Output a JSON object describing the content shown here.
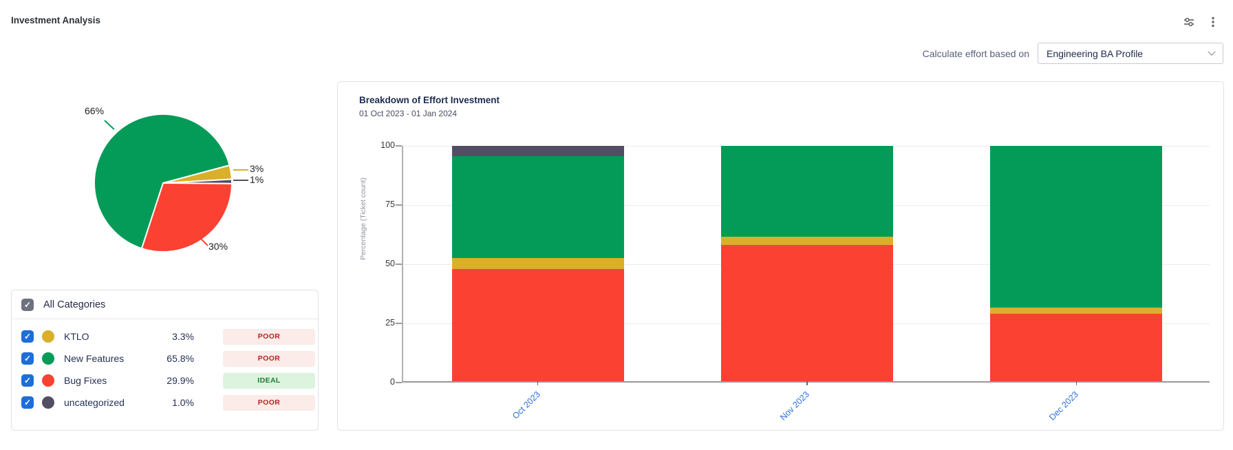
{
  "header": {
    "title": "Investment Analysis",
    "icons": [
      "sliders-icon",
      "kebab-menu-icon"
    ]
  },
  "controls": {
    "label": "Calculate effort based on",
    "dropdown_value": "Engineering BA Profile"
  },
  "categories_panel": {
    "all_label": "All Categories",
    "rows": [
      {
        "name": "KTLO",
        "pct": "3.3%",
        "status": "POOR",
        "status_type": "poor",
        "color": "#d9af2b",
        "checked": true
      },
      {
        "name": "New Features",
        "pct": "65.8%",
        "status": "POOR",
        "status_type": "poor",
        "color": "#049b58",
        "checked": true
      },
      {
        "name": "Bug Fixes",
        "pct": "29.9%",
        "status": "IDEAL",
        "status_type": "ideal",
        "color": "#fb4132",
        "checked": true
      },
      {
        "name": "uncategorized",
        "pct": "1.0%",
        "status": "POOR",
        "status_type": "poor",
        "color": "#534e64",
        "checked": true
      }
    ],
    "status_colors": {
      "poor_bg": "#fbebe9",
      "poor_text": "#b3261e",
      "ideal_bg": "#dcf3de",
      "ideal_text": "#1a7d33"
    }
  },
  "chart_data": [
    {
      "type": "pie",
      "start_angle_deg": 75,
      "slices": [
        {
          "name": "KTLO",
          "value": 3.3,
          "label": "3%",
          "color": "#d9af2b"
        },
        {
          "name": "uncategorized",
          "value": 1.0,
          "label": "1%",
          "color": "#534e64"
        },
        {
          "name": "Bug Fixes",
          "value": 29.9,
          "label": "30%",
          "color": "#fb4132"
        },
        {
          "name": "New Features",
          "value": 65.8,
          "label": "66%",
          "color": "#049b58"
        }
      ],
      "legend_position": "none"
    },
    {
      "type": "bar",
      "stacked": true,
      "title": "Breakdown of Effort Investment",
      "subtitle": "01 Oct 2023 - 01 Jan 2024",
      "categories": [
        "Oct 2023",
        "Nov 2023",
        "Dec 2023"
      ],
      "series": [
        {
          "name": "Bug Fixes",
          "color": "#fb4132",
          "values": [
            47.8,
            58.0,
            28.6
          ]
        },
        {
          "name": "KTLO",
          "color": "#d9af2b",
          "values": [
            4.4,
            3.4,
            2.7
          ]
        },
        {
          "name": "New Features",
          "color": "#049b58",
          "values": [
            43.5,
            38.6,
            68.7
          ]
        },
        {
          "name": "uncategorized",
          "color": "#534e64",
          "values": [
            4.3,
            0,
            0
          ]
        }
      ],
      "ylabel": "Percentage (Ticket count)",
      "xlabel": "",
      "yticks": [
        0,
        25,
        50,
        75,
        100
      ],
      "ylim": [
        0,
        100
      ],
      "grid": "horizontal",
      "xlabel_color": "#2a6fdb"
    }
  ]
}
